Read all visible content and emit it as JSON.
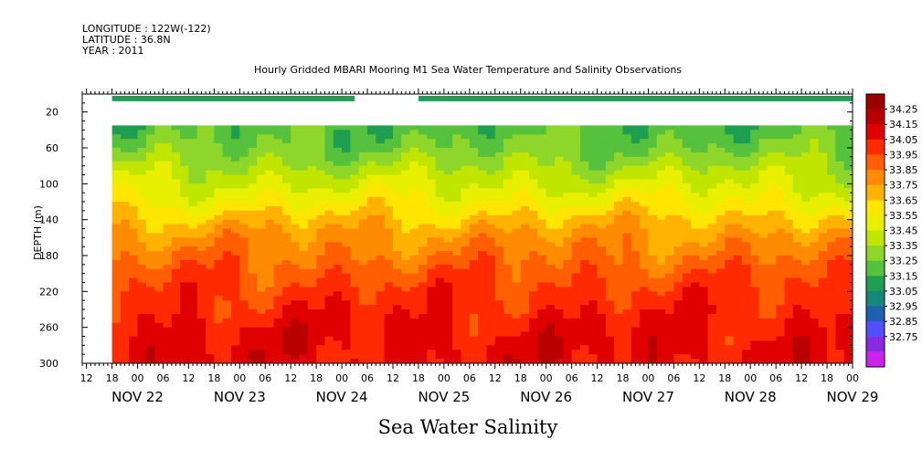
{
  "header": {
    "longitude": "LONGITUDE : 122W(-122)",
    "latitude": "LATITUDE : 36.8N",
    "year": "YEAR : 2011",
    "title": "Hourly Gridded MBARI Mooring M1 Sea Water Temperature and Salinity Observations"
  },
  "xlabel": "Sea Water Salinity",
  "ylabel": "DEPTH (m)",
  "chart_data": {
    "type": "heatmap",
    "title": "Hourly Gridded MBARI Mooring M1 Sea Water Temperature and Salinity Observations",
    "xlabel": "Sea Water Salinity",
    "ylabel": "DEPTH (m)",
    "x_hour_ticks": [
      "12",
      "18",
      "00",
      "06",
      "12",
      "18",
      "00",
      "06",
      "12",
      "18",
      "00",
      "06",
      "12",
      "18",
      "00",
      "06",
      "12",
      "18",
      "00",
      "06",
      "12",
      "18",
      "00",
      "06",
      "12",
      "18",
      "00",
      "06",
      "12",
      "18",
      "00"
    ],
    "x_day_labels": [
      "NOV 22",
      "NOV 23",
      "NOV 24",
      "NOV 25",
      "NOV 26",
      "NOV 27",
      "NOV 28",
      "NOV 29"
    ],
    "x_range_hours": [
      11,
      192
    ],
    "y_ticks": [
      20,
      60,
      100,
      140,
      180,
      220,
      260,
      300
    ],
    "y_range": [
      300,
      0
    ],
    "colorbar_levels": [
      34.25,
      34.15,
      34.05,
      33.95,
      33.85,
      33.75,
      33.65,
      33.55,
      33.45,
      33.35,
      33.25,
      33.15,
      33.05,
      32.95,
      32.85,
      32.75
    ],
    "colorbar_colors": [
      "#9b0000",
      "#b90000",
      "#e10000",
      "#ff2b00",
      "#ff5f00",
      "#ff8c00",
      "#ffb200",
      "#ffe600",
      "#e8f000",
      "#c0e600",
      "#8ed62a",
      "#55c13c",
      "#1e9e50",
      "#17877a",
      "#1f5fb0",
      "#5050ff",
      "#8a2be2",
      "#cc22ee"
    ],
    "surface_band": {
      "depth_m": [
        2,
        8
      ],
      "segments_hours": [
        [
          18,
          75
        ],
        [
          90,
          192
        ]
      ],
      "value_approx": 33.2
    },
    "data_depth_range": [
      35,
      300
    ],
    "data_time_range_hours": [
      18,
      192
    ],
    "depth_profile": [
      {
        "depth": 40,
        "value": 33.3
      },
      {
        "depth": 60,
        "value": 33.35
      },
      {
        "depth": 80,
        "value": 33.45
      },
      {
        "depth": 100,
        "value": 33.55
      },
      {
        "depth": 120,
        "value": 33.65
      },
      {
        "depth": 140,
        "value": 33.78
      },
      {
        "depth": 160,
        "value": 33.88
      },
      {
        "depth": 180,
        "value": 33.95
      },
      {
        "depth": 200,
        "value": 34.02
      },
      {
        "depth": 220,
        "value": 34.08
      },
      {
        "depth": 240,
        "value": 34.12
      },
      {
        "depth": 260,
        "value": 34.16
      },
      {
        "depth": 280,
        "value": 34.18
      },
      {
        "depth": 300,
        "value": 34.18
      }
    ]
  }
}
